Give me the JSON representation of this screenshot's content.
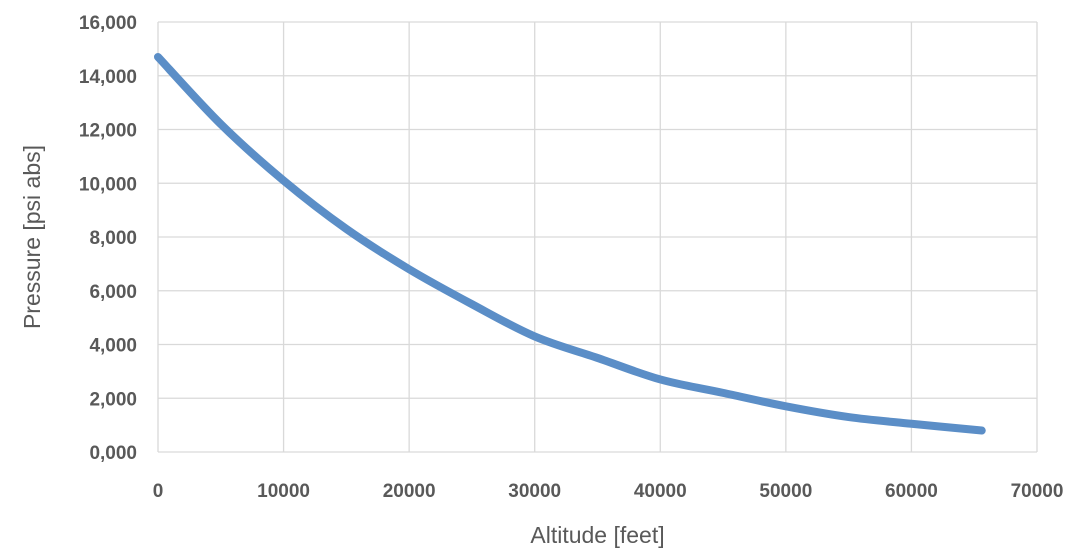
{
  "chart_data": {
    "type": "line",
    "title": "",
    "xlabel": "Altitude [feet]",
    "ylabel": "Pressure [psi abs]",
    "xlim": [
      0,
      70000
    ],
    "ylim": [
      0,
      16
    ],
    "x_ticks": [
      "0",
      "10000",
      "20000",
      "30000",
      "40000",
      "50000",
      "60000",
      "70000"
    ],
    "y_ticks": [
      "0,000",
      "2,000",
      "4,000",
      "6,000",
      "8,000",
      "10,000",
      "12,000",
      "14,000",
      "16,000"
    ],
    "grid": true,
    "legend": "none",
    "colors": {
      "series": "#5b8ec7",
      "grid": "#d9d9d9",
      "text": "#595959"
    },
    "series": [
      {
        "x": [
          0,
          5000,
          10000,
          15000,
          20000,
          25000,
          30000,
          35000,
          40000,
          45000,
          50000,
          55000,
          60000,
          65600
        ],
        "values": [
          14.7,
          12.2,
          10.1,
          8.3,
          6.8,
          5.5,
          4.3,
          3.5,
          2.7,
          2.2,
          1.7,
          1.3,
          1.05,
          0.8
        ]
      }
    ]
  }
}
